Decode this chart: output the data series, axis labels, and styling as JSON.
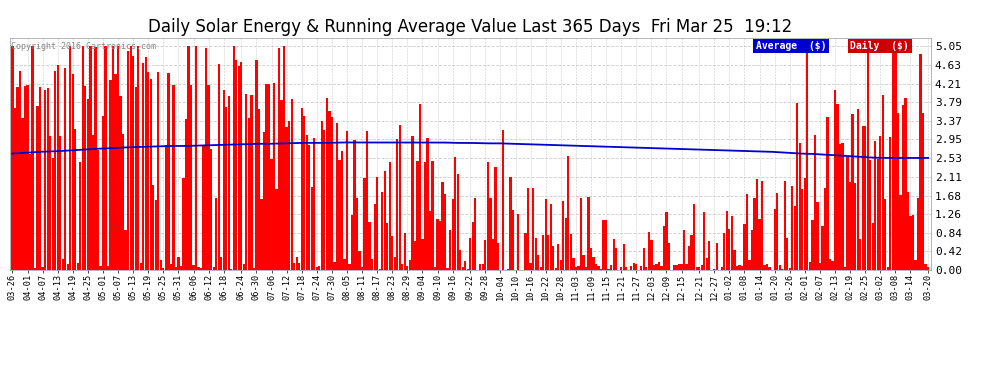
{
  "title": "Daily Solar Energy & Running Average Value Last 365 Days  Fri Mar 25  19:12",
  "copyright": "Copyright 2016 Cartronics.com",
  "yticks": [
    0.0,
    0.42,
    0.84,
    1.26,
    1.68,
    2.11,
    2.53,
    2.95,
    3.37,
    3.79,
    4.21,
    4.63,
    5.05
  ],
  "ylim": [
    0,
    5.25
  ],
  "bar_color": "#ff0000",
  "avg_color": "#0000cc",
  "background_color": "#ffffff",
  "grid_color": "#cccccc",
  "legend_avg_bg": "#0000cc",
  "legend_daily_bg": "#cc0000",
  "legend_avg_text": "Average  ($)",
  "legend_daily_text": "Daily  ($)",
  "title_fontsize": 12,
  "tick_fontsize": 8,
  "xtick_labels": [
    "03-26",
    "04-01",
    "04-07",
    "04-13",
    "04-19",
    "04-25",
    "05-01",
    "05-07",
    "05-13",
    "05-19",
    "05-25",
    "05-31",
    "06-06",
    "06-12",
    "06-18",
    "06-24",
    "06-30",
    "07-06",
    "07-12",
    "07-18",
    "07-24",
    "07-30",
    "08-05",
    "08-11",
    "08-17",
    "08-23",
    "08-29",
    "09-04",
    "09-10",
    "09-16",
    "09-22",
    "09-28",
    "10-04",
    "10-10",
    "10-16",
    "10-22",
    "10-28",
    "11-03",
    "11-09",
    "11-15",
    "11-21",
    "11-27",
    "12-03",
    "12-09",
    "12-15",
    "12-21",
    "12-27",
    "01-02",
    "01-08",
    "01-14",
    "01-20",
    "01-26",
    "02-01",
    "02-07",
    "02-13",
    "02-19",
    "02-25",
    "03-02",
    "03-08",
    "03-14",
    "03-20"
  ],
  "avg_values": [
    2.63,
    2.65,
    2.67,
    2.68,
    2.7,
    2.72,
    2.74,
    2.75,
    2.77,
    2.78,
    2.79,
    2.8,
    2.8,
    2.81,
    2.82,
    2.83,
    2.84,
    2.85,
    2.85,
    2.86,
    2.87,
    2.87,
    2.87,
    2.88,
    2.88,
    2.88,
    2.88,
    2.88,
    2.88,
    2.88,
    2.88,
    2.87,
    2.87,
    2.86,
    2.86,
    2.85,
    2.84,
    2.83,
    2.82,
    2.81,
    2.8,
    2.79,
    2.78,
    2.77,
    2.76,
    2.75,
    2.74,
    2.73,
    2.72,
    2.71,
    2.7,
    2.69,
    2.68,
    2.67,
    2.65,
    2.63,
    2.62,
    2.6,
    2.58,
    2.56,
    2.54,
    2.53,
    2.53,
    2.53,
    2.53
  ]
}
